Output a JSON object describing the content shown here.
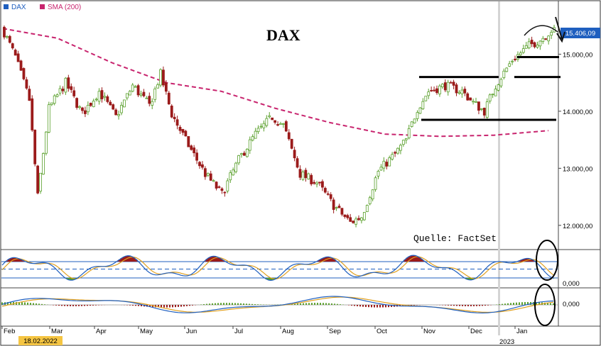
{
  "chart_data": [
    {
      "type": "candlestick",
      "title": "DAX",
      "source": "Quelle: FactSet",
      "legend": [
        {
          "name": "DAX",
          "color": "#1f5fbf"
        },
        {
          "name": "SMA (200)",
          "color": "#c8246e"
        }
      ],
      "y_ticks": [
        "15.000,00",
        "14.000,00",
        "13.000,00",
        "12.000,00"
      ],
      "y_tick_values": [
        15000,
        14000,
        13000,
        12000
      ],
      "ylim": [
        11600,
        15900
      ],
      "last_price": "15.406,09",
      "x_months": [
        "Feb",
        "Mar",
        "Apr",
        "May",
        "Jun",
        "Jul",
        "Aug",
        "Sep",
        "Oct",
        "Nov",
        "Dec",
        "Jan"
      ],
      "year_label": "2023",
      "date_badge": "18.02.2022",
      "close_keypoints": [
        [
          0,
          15380
        ],
        [
          4,
          14950
        ],
        [
          9,
          14200
        ],
        [
          12,
          12500
        ],
        [
          16,
          14050
        ],
        [
          22,
          14500
        ],
        [
          28,
          13950
        ],
        [
          34,
          14350
        ],
        [
          40,
          13900
        ],
        [
          46,
          14450
        ],
        [
          52,
          14100
        ],
        [
          56,
          14650
        ],
        [
          60,
          13950
        ],
        [
          66,
          13400
        ],
        [
          72,
          12900
        ],
        [
          78,
          12550
        ],
        [
          84,
          13150
        ],
        [
          90,
          13600
        ],
        [
          96,
          13900
        ],
        [
          100,
          13750
        ],
        [
          106,
          12900
        ],
        [
          112,
          12750
        ],
        [
          118,
          12350
        ],
        [
          124,
          12050
        ],
        [
          128,
          12150
        ],
        [
          134,
          12950
        ],
        [
          140,
          13250
        ],
        [
          144,
          13500
        ],
        [
          148,
          14050
        ],
        [
          152,
          14350
        ],
        [
          158,
          14450
        ],
        [
          164,
          14350
        ],
        [
          168,
          14150
        ],
        [
          172,
          14000
        ],
        [
          176,
          14450
        ],
        [
          182,
          14900
        ],
        [
          188,
          15150
        ],
        [
          192,
          15250
        ],
        [
          196,
          15420
        ],
        [
          197,
          15406
        ]
      ],
      "sma200": [
        15450,
        15280,
        14850,
        14500,
        14350,
        14050,
        13800,
        13600,
        13560,
        13580,
        13660
      ],
      "support_resistance_levels": [
        14600,
        13850,
        14950,
        14600
      ],
      "annotation": "curved arrow indicating downturn from recent high"
    },
    {
      "type": "oscillator",
      "y_ticks": [
        "0,000"
      ],
      "note": "stochastic-style oscillator with filled overbought/oversold areas, dashed midline"
    },
    {
      "type": "macd",
      "y_ticks": [
        "0,000"
      ],
      "note": "MACD lines with histogram"
    }
  ]
}
